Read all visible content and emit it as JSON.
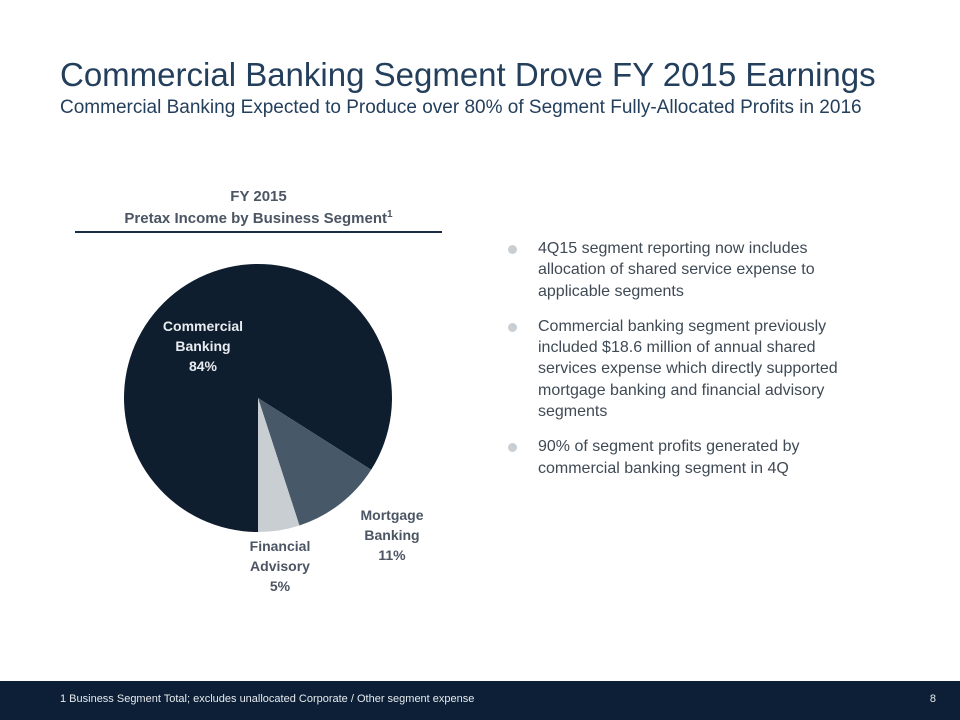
{
  "slide": {
    "title": "Commercial Banking Segment Drove FY 2015 Earnings",
    "subtitle": "Commercial Banking Expected to Produce over 80% of Segment Fully-Allocated Profits in 2016",
    "page_number": "8"
  },
  "chart_heading": {
    "line1": "FY 2015",
    "line2": "Pretax Income by Business Segment",
    "footnote_marker": "1"
  },
  "chart_data": {
    "type": "pie",
    "title": "FY 2015 Pretax Income by Business Segment",
    "unit": "%",
    "slices": [
      {
        "label": "Commercial Banking",
        "label_lines": [
          "Commercial",
          "Banking"
        ],
        "value": 84,
        "display": "84%",
        "color": "#0f1e2f"
      },
      {
        "label": "Mortgage Banking",
        "label_lines": [
          "Mortgage",
          "Banking"
        ],
        "value": 11,
        "display": "11%",
        "color": "#475868"
      },
      {
        "label": "Financial Advisory",
        "label_lines": [
          "Financial",
          "Advisory"
        ],
        "value": 5,
        "display": "5%",
        "color": "#c9ced3"
      }
    ],
    "legend": "none"
  },
  "bullets": [
    "4Q15 segment reporting now includes allocation of shared service expense to applicable segments",
    "Commercial banking segment previously included $18.6 million of annual shared services expense which directly supported mortgage banking and financial advisory segments",
    "90% of segment profits generated by commercial banking segment in 4Q"
  ],
  "footer": {
    "footnote": "1  Business Segment Total; excludes unallocated Corporate / Other segment expense"
  },
  "colors": {
    "title": "#243f5c",
    "footer_bar": "#0c1f36",
    "bullet_marker": "#c9ced3"
  }
}
